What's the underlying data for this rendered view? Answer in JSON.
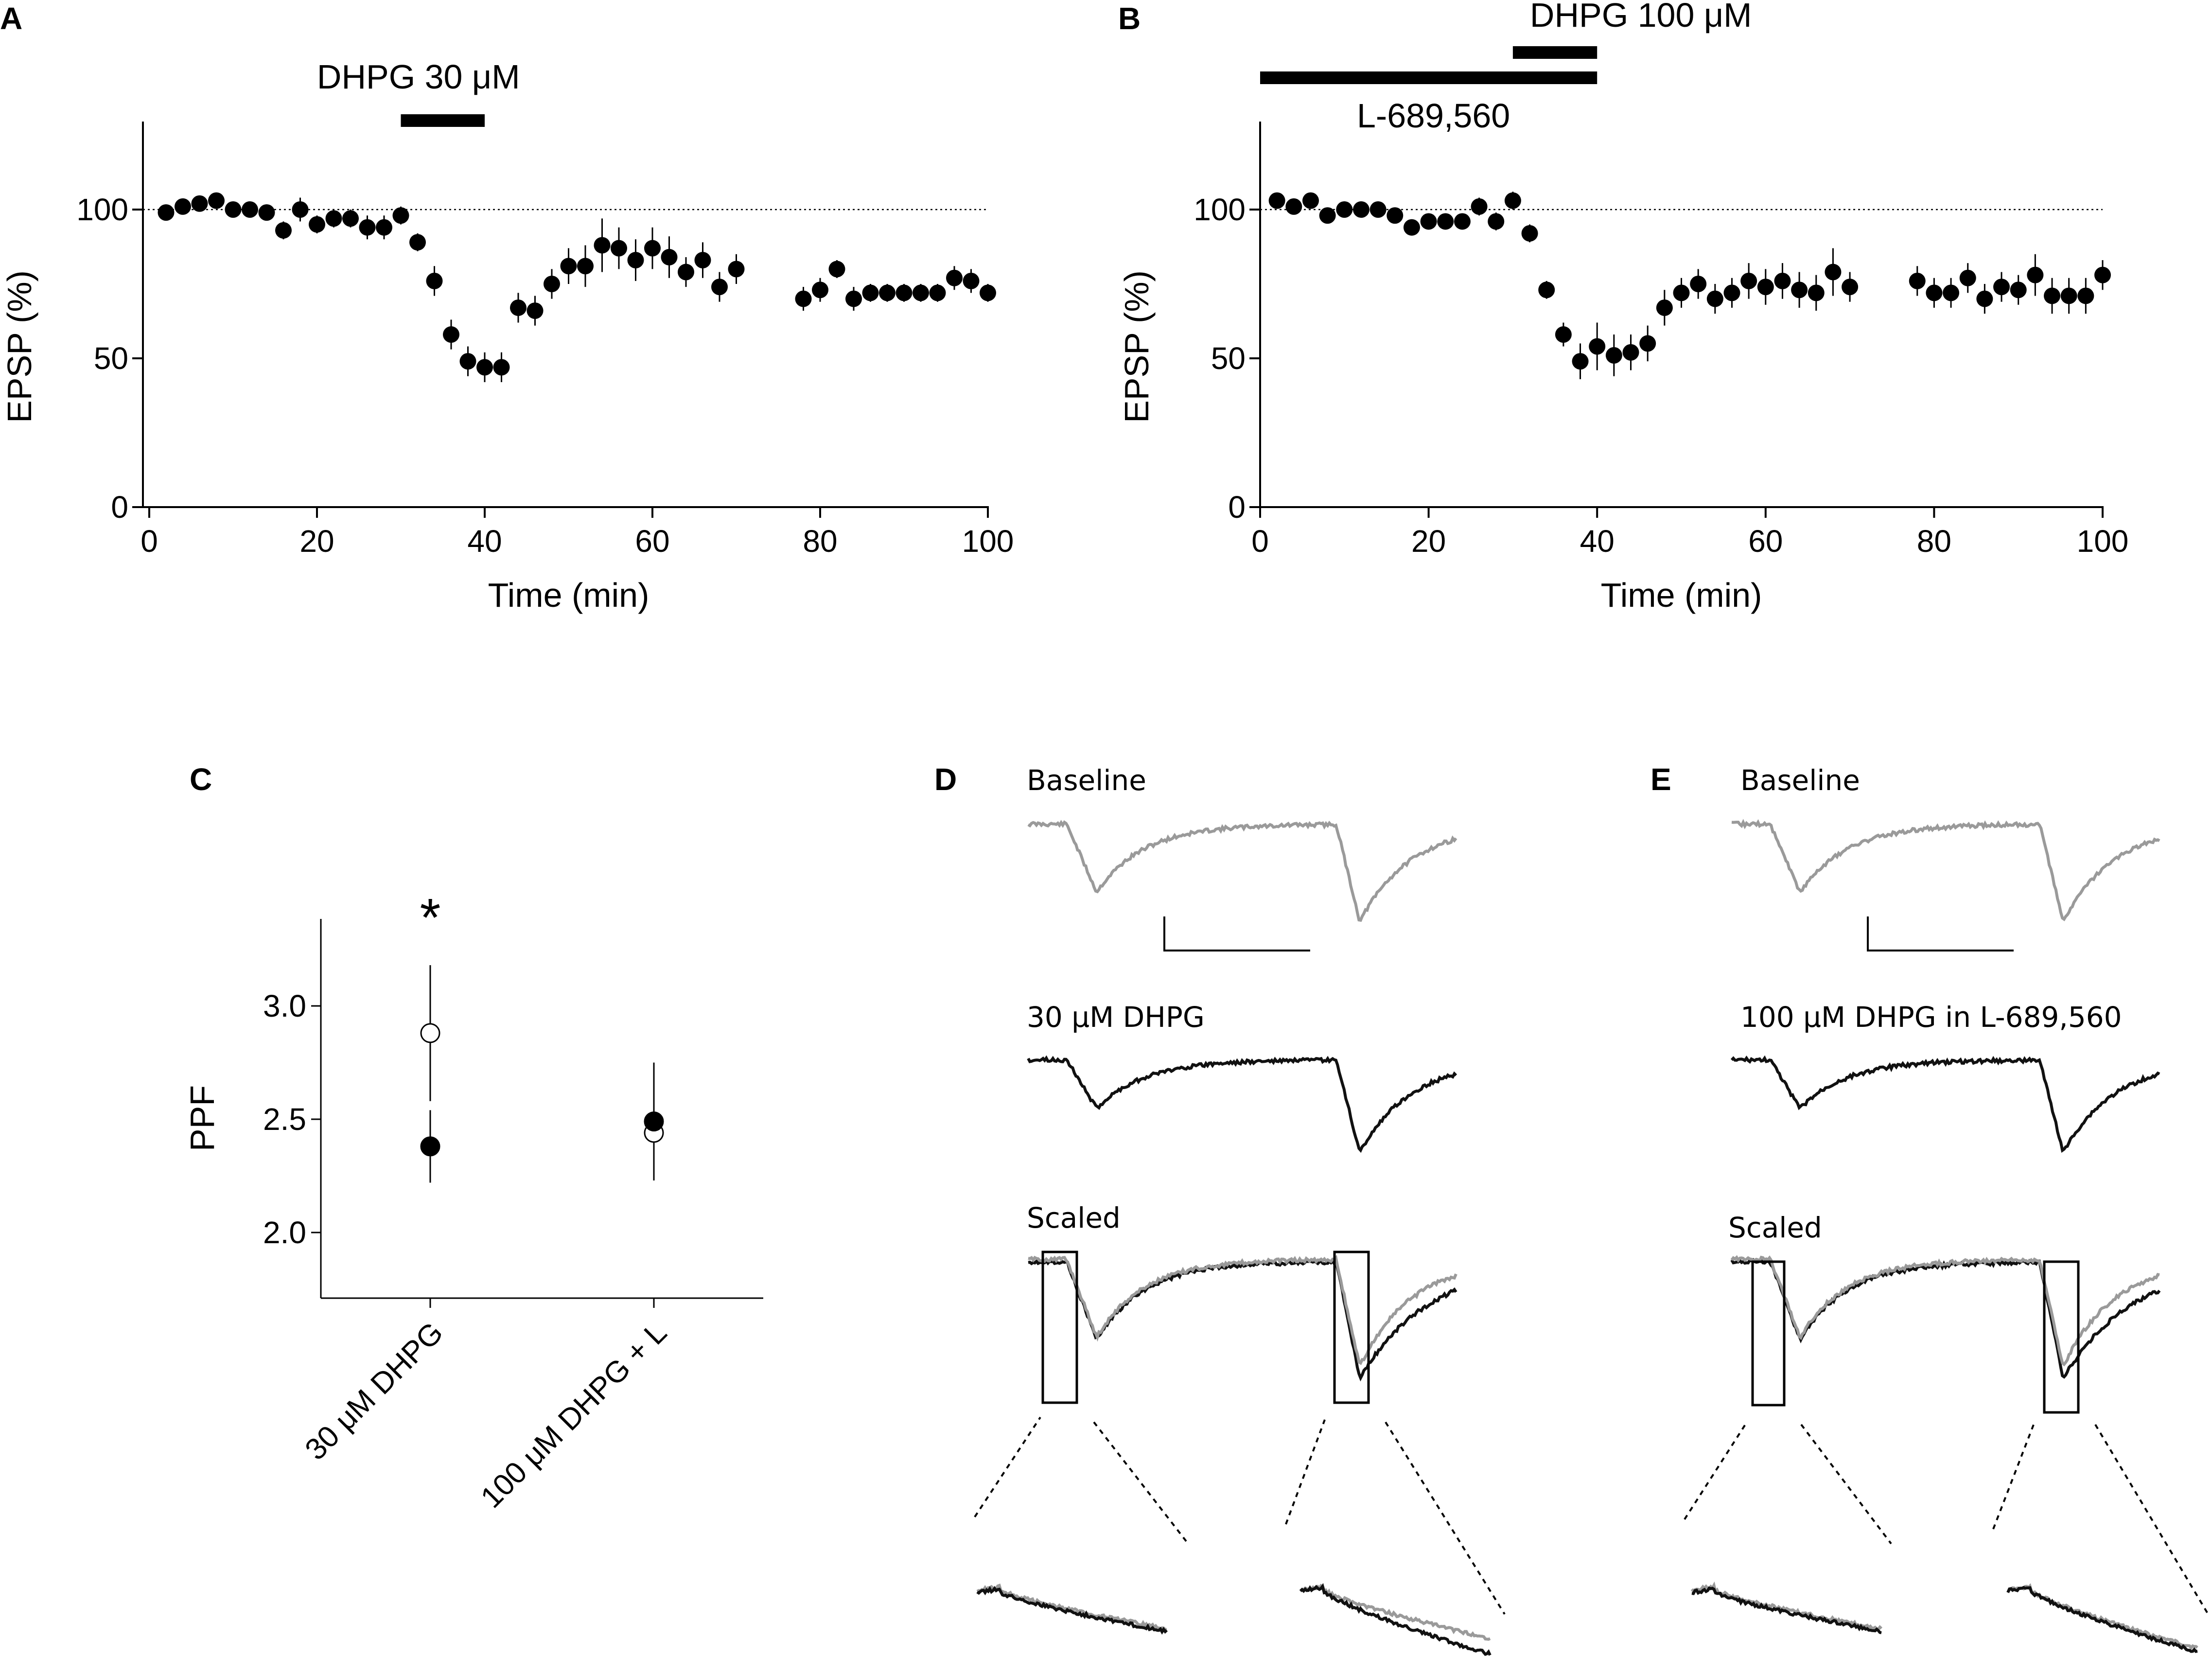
{
  "chart_data": [
    {
      "panel": "A",
      "type": "scatter",
      "xlabel": "Time (min)",
      "ylabel": "EPSP (%)",
      "xlim": [
        0,
        100
      ],
      "ylim": [
        0,
        130
      ],
      "xticks": [
        "0",
        "20",
        "40",
        "60",
        "80",
        "100"
      ],
      "yticks": [
        "0",
        "50",
        "100"
      ],
      "reference_line": 100,
      "drug_bars": [
        {
          "label": "DHPG 30 μM",
          "start": 30,
          "end": 40,
          "label_pos": "above"
        }
      ],
      "x": [
        2,
        4,
        6,
        8,
        10,
        12,
        14,
        16,
        18,
        20,
        22,
        24,
        26,
        28,
        30,
        32,
        34,
        36,
        38,
        40,
        42,
        44,
        46,
        48,
        50,
        52,
        54,
        56,
        58,
        60,
        62,
        64,
        66,
        68,
        70,
        78,
        80,
        82,
        84,
        86,
        88,
        90,
        92,
        94,
        96,
        98,
        100
      ],
      "y": [
        99,
        101,
        102,
        103,
        100,
        100,
        99,
        93,
        100,
        95,
        97,
        97,
        94,
        94,
        98,
        89,
        76,
        58,
        49,
        47,
        47,
        67,
        66,
        75,
        81,
        81,
        88,
        87,
        83,
        87,
        84,
        79,
        83,
        74,
        80,
        70,
        73,
        80,
        70,
        72,
        72,
        72,
        72,
        72,
        77,
        76,
        72
      ],
      "err": [
        2,
        2,
        2,
        2,
        2,
        2,
        2,
        3,
        4,
        3,
        3,
        3,
        4,
        4,
        3,
        3,
        5,
        5,
        5,
        5,
        5,
        5,
        5,
        5,
        6,
        7,
        9,
        7,
        7,
        7,
        7,
        5,
        6,
        5,
        5,
        4,
        4,
        3,
        4,
        3,
        3,
        3,
        3,
        3,
        4,
        4,
        3
      ]
    },
    {
      "panel": "B",
      "type": "scatter",
      "xlabel": "Time (min)",
      "ylabel": "EPSP (%)",
      "xlim": [
        0,
        100
      ],
      "ylim": [
        0,
        130
      ],
      "xticks": [
        "0",
        "20",
        "40",
        "60",
        "80",
        "100"
      ],
      "yticks": [
        "0",
        "50",
        "100"
      ],
      "reference_line": 100,
      "drug_bars": [
        {
          "label": "DHPG 100 μM",
          "start": 30,
          "end": 40,
          "label_pos": "above"
        },
        {
          "label": "L-689,560",
          "start": 0,
          "end": 40,
          "label_pos": "below"
        }
      ],
      "x": [
        2,
        4,
        6,
        8,
        10,
        12,
        14,
        16,
        18,
        20,
        22,
        24,
        26,
        28,
        30,
        32,
        34,
        36,
        38,
        40,
        42,
        44,
        46,
        48,
        50,
        52,
        54,
        56,
        58,
        60,
        62,
        64,
        66,
        68,
        70,
        78,
        80,
        82,
        84,
        86,
        88,
        90,
        92,
        94,
        96,
        98,
        100
      ],
      "y": [
        103,
        101,
        103,
        98,
        100,
        100,
        100,
        98,
        94,
        96,
        96,
        96,
        101,
        96,
        103,
        92,
        73,
        58,
        49,
        54,
        51,
        52,
        55,
        67,
        72,
        75,
        70,
        72,
        76,
        74,
        76,
        73,
        72,
        79,
        74,
        76,
        72,
        72,
        77,
        70,
        74,
        73,
        78,
        71,
        71,
        71,
        78
      ],
      "err": [
        2,
        2,
        2,
        2,
        2,
        2,
        2,
        2,
        2,
        2,
        2,
        2,
        3,
        3,
        3,
        3,
        3,
        4,
        6,
        8,
        7,
        6,
        6,
        6,
        5,
        5,
        5,
        5,
        6,
        6,
        6,
        6,
        6,
        8,
        5,
        5,
        5,
        5,
        5,
        5,
        5,
        5,
        7,
        6,
        6,
        6,
        5
      ]
    },
    {
      "panel": "C",
      "type": "scatter",
      "ylabel": "PPF",
      "ylim": [
        1.75,
        3.4
      ],
      "yticks": [
        "2.0",
        "2.5",
        "3.0"
      ],
      "categories": [
        "30 μM DHPG",
        "100 μM DHPG + L"
      ],
      "series": [
        {
          "name": "open",
          "marker": "open-circle",
          "values": [
            2.88,
            2.44
          ],
          "err": [
            0.3,
            0.21
          ]
        },
        {
          "name": "filled",
          "marker": "filled-circle",
          "values": [
            2.38,
            2.49
          ],
          "err": [
            0.16,
            0.26
          ]
        }
      ],
      "significance": [
        "*",
        ""
      ]
    }
  ],
  "panels": {
    "a_label": "A",
    "b_label": "B",
    "c_label": "C",
    "d_label": "D",
    "e_label": "E"
  },
  "panel_d": {
    "baseline_label": "Baseline",
    "drug_label": "30 μM DHPG",
    "scaled_label": "Scaled"
  },
  "panel_e": {
    "baseline_label": "Baseline",
    "drug_label": "100 μM DHPG in L-689,560",
    "scaled_label": "Scaled"
  },
  "colors": {
    "baseline_trace": "#9a9a9a",
    "drug_trace": "#111111",
    "axis": "#000000"
  }
}
